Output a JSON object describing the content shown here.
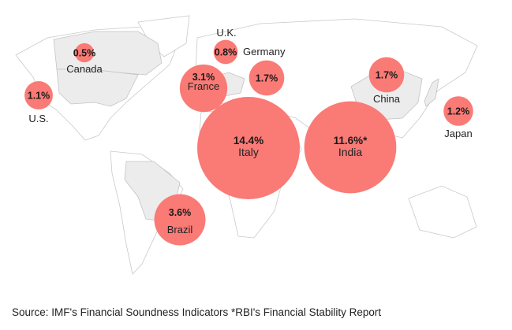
{
  "map": {
    "bubble_color": "#fa7a76",
    "highlight_color": "#ececec",
    "countries": [
      {
        "id": "canada",
        "name": "Canada",
        "value": 0.5,
        "label": "0.5%"
      },
      {
        "id": "us",
        "name": "U.S.",
        "value": 1.1,
        "label": "1.1%"
      },
      {
        "id": "uk",
        "name": "U.K.",
        "value": 0.8,
        "label": "0.8%"
      },
      {
        "id": "germany",
        "name": "Germany",
        "value": 1.7,
        "label": "1.7%"
      },
      {
        "id": "france",
        "name": "France",
        "value": 3.1,
        "label": "3.1%"
      },
      {
        "id": "italy",
        "name": "Italy",
        "value": 14.4,
        "label": "14.4%"
      },
      {
        "id": "india",
        "name": "India",
        "value": 11.6,
        "label": "11.6%*"
      },
      {
        "id": "china",
        "name": "China",
        "value": 1.7,
        "label": "1.7%"
      },
      {
        "id": "japan",
        "name": "Japan",
        "value": 1.2,
        "label": "1.2%"
      },
      {
        "id": "brazil",
        "name": "Brazil",
        "value": 3.6,
        "label": "3.6%"
      }
    ]
  },
  "source": "Source: IMF's Financial Soundness Indicators *RBI's Financial Stability Report"
}
